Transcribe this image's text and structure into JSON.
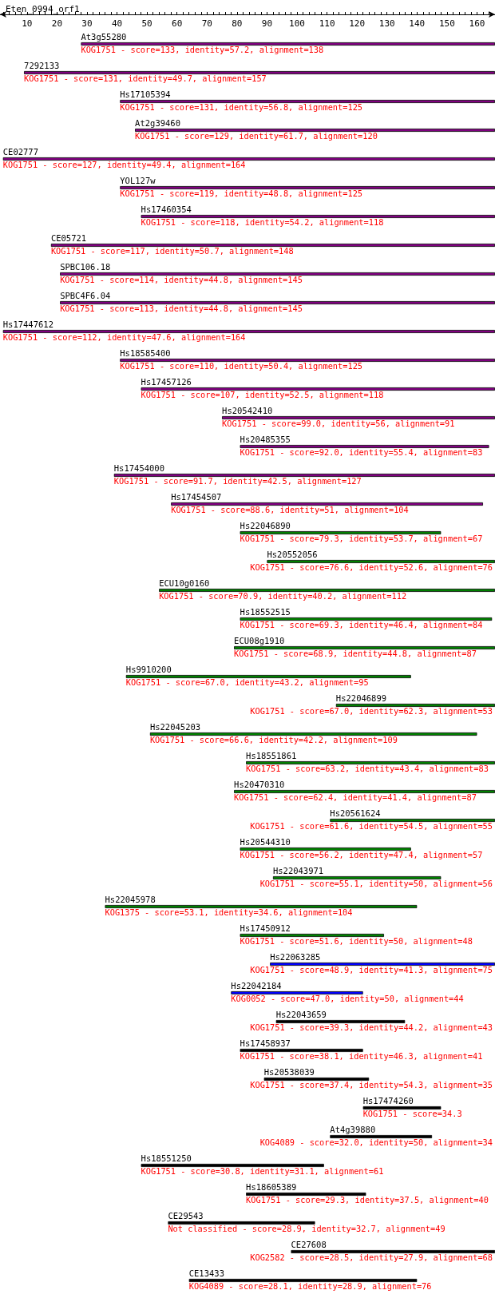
{
  "chart_data": {
    "type": "bar",
    "orientation": "horizontal",
    "title": "Eten_0994_orf1",
    "categories": [
      "At3g55280",
      "7292133",
      "Hs17105394",
      "At2g39460",
      "CE02777",
      "YOL127w",
      "Hs17460354",
      "CE05721",
      "SPBC106.18",
      "SPBC4F6.04",
      "Hs17447612",
      "Hs18585400",
      "Hs17457126",
      "Hs20542410",
      "Hs20485355",
      "Hs17454000",
      "Hs17454507",
      "Hs22046890",
      "Hs20552056",
      "ECU10g0160",
      "Hs18552515",
      "ECU08g1910",
      "Hs9910200",
      "Hs22046899",
      "Hs22045203",
      "Hs18551861",
      "Hs20470310",
      "Hs20561624",
      "Hs20544310",
      "Hs22043971",
      "Hs22045978",
      "Hs17450912",
      "Hs22063285",
      "Hs22042184",
      "Hs22043659",
      "Hs17458937",
      "Hs20538039",
      "Hs17474260",
      "At4g39880",
      "Hs18551250",
      "Hs18605389",
      "CE29543",
      "CE27608",
      "CE13433"
    ],
    "base": [
      28,
      9,
      41,
      46,
      2,
      41,
      48,
      18,
      21,
      21,
      2,
      41,
      48,
      75,
      81,
      39,
      58,
      81,
      90,
      54,
      81,
      79,
      43,
      113,
      51,
      83,
      79,
      111,
      81,
      92,
      36,
      81,
      91,
      78,
      93,
      81,
      89,
      122,
      111,
      48,
      83,
      57,
      98,
      64
    ],
    "values": [
      138,
      157,
      125,
      120,
      164,
      125,
      118,
      148,
      145,
      145,
      164,
      125,
      118,
      91,
      83,
      127,
      104,
      67,
      76,
      112,
      84,
      87,
      95,
      53,
      109,
      83,
      87,
      55,
      57,
      56,
      104,
      48,
      75,
      44,
      43,
      41,
      35,
      26,
      34,
      61,
      40,
      49,
      68,
      76
    ],
    "colors": [
      "#800080",
      "#800080",
      "#800080",
      "#800080",
      "#800080",
      "#800080",
      "#800080",
      "#800080",
      "#800080",
      "#800080",
      "#800080",
      "#800080",
      "#800080",
      "#800080",
      "#800080",
      "#800080",
      "#800080",
      "#008000",
      "#008000",
      "#008000",
      "#008000",
      "#008000",
      "#008000",
      "#008000",
      "#008000",
      "#008000",
      "#008000",
      "#008000",
      "#008000",
      "#008000",
      "#008000",
      "#008000",
      "#0000ff",
      "#0000ff",
      "#000000",
      "#000000",
      "#000000",
      "#000000",
      "#000000",
      "#000000",
      "#000000",
      "#000000",
      "#000000",
      "#000000"
    ],
    "value_labels": [
      "KOG1751 - score=133, identity=57.2, alignment=138",
      "KOG1751 - score=131, identity=49.7, alignment=157",
      "KOG1751 - score=131, identity=56.8, alignment=125",
      "KOG1751 - score=129, identity=61.7, alignment=120",
      "KOG1751 - score=127, identity=49.4, alignment=164",
      "KOG1751 - score=119, identity=48.8, alignment=125",
      "KOG1751 - score=118, identity=54.2, alignment=118",
      "KOG1751 - score=117, identity=50.7, alignment=148",
      "KOG1751 - score=114, identity=44.8, alignment=145",
      "KOG1751 - score=113, identity=44.8, alignment=145",
      "KOG1751 - score=112, identity=47.6, alignment=164",
      "KOG1751 - score=110, identity=50.4, alignment=125",
      "KOG1751 - score=107, identity=52.5, alignment=118",
      "KOG1751 - score=99.0, identity=56, alignment=91",
      "KOG1751 - score=92.0, identity=55.4, alignment=83",
      "KOG1751 - score=91.7, identity=42.5, alignment=127",
      "KOG1751 - score=88.6, identity=51, alignment=104",
      "KOG1751 - score=79.3, identity=53.7, alignment=67",
      "KOG1751 - score=76.6, identity=52.6, alignment=76",
      "KOG1751 - score=70.9, identity=40.2, alignment=112",
      "KOG1751 - score=69.3, identity=46.4, alignment=84",
      "KOG1751 - score=68.9, identity=44.8, alignment=87",
      "KOG1751 - score=67.0, identity=43.2, alignment=95",
      "KOG1751 - score=67.0, identity=62.3, alignment=53",
      "KOG1751 - score=66.6, identity=42.2, alignment=109",
      "KOG1751 - score=63.2, identity=43.4, alignment=83",
      "KOG1751 - score=62.4, identity=41.4, alignment=87",
      "KOG1751 - score=61.6, identity=54.5, alignment=55",
      "KOG1751 - score=56.2, identity=47.4, alignment=57",
      "KOG1751 - score=55.1, identity=50, alignment=56",
      "KOG1375 - score=53.1, identity=34.6, alignment=104",
      "KOG1751 - score=51.6, identity=50, alignment=48",
      "KOG1751 - score=48.9, identity=41.3, alignment=75",
      "KOG0052 - score=47.0, identity=50, alignment=44",
      "KOG1751 - score=39.3, identity=44.2, alignment=43",
      "KOG1751 - score=38.1, identity=46.3, alignment=41",
      "KOG1751 - score=37.4, identity=54.3, alignment=35",
      "KOG1751 - score=34.3",
      "KOG4089 - score=32.0, identity=50, alignment=34",
      "KOG1751 - score=30.8, identity=31.1, alignment=61",
      "KOG1751 - score=29.3, identity=37.5, alignment=40",
      "Not classified - score=28.9, identity=32.7, alignment=49",
      "KOG2582 - score=28.5, identity=27.9, alignment=68",
      "KOG4089 - score=28.1, identity=28.9, alignment=76"
    ],
    "xlim": [
      1,
      166
    ],
    "xticks": [
      {
        "value": 2,
        "label": null
      },
      {
        "value": 4,
        "label": null
      },
      {
        "value": 6,
        "label": null
      },
      {
        "value": 8,
        "label": null
      },
      10,
      {
        "value": 12,
        "label": null
      },
      {
        "value": 14,
        "label": null
      },
      {
        "value": 16,
        "label": null
      },
      {
        "value": 18,
        "label": null
      },
      20,
      {
        "value": 22,
        "label": null
      },
      {
        "value": 24,
        "label": null
      },
      {
        "value": 26,
        "label": null
      },
      {
        "value": 28,
        "label": null
      },
      30,
      {
        "value": 32,
        "label": null
      },
      {
        "value": 34,
        "label": null
      },
      {
        "value": 36,
        "label": null
      },
      {
        "value": 38,
        "label": null
      },
      40,
      {
        "value": 42,
        "label": null
      },
      {
        "value": 44,
        "label": null
      },
      {
        "value": 46,
        "label": null
      },
      {
        "value": 48,
        "label": null
      },
      50,
      {
        "value": 52,
        "label": null
      },
      {
        "value": 54,
        "label": null
      },
      {
        "value": 56,
        "label": null
      },
      {
        "value": 58,
        "label": null
      },
      60,
      {
        "value": 62,
        "label": null
      },
      {
        "value": 64,
        "label": null
      },
      {
        "value": 66,
        "label": null
      },
      {
        "value": 68,
        "label": null
      },
      70,
      {
        "value": 72,
        "label": null
      },
      {
        "value": 74,
        "label": null
      },
      {
        "value": 76,
        "label": null
      },
      {
        "value": 78,
        "label": null
      },
      80,
      {
        "value": 82,
        "label": null
      },
      {
        "value": 84,
        "label": null
      },
      {
        "value": 86,
        "label": null
      },
      {
        "value": 88,
        "label": null
      },
      90,
      {
        "value": 92,
        "label": null
      },
      {
        "value": 94,
        "label": null
      },
      {
        "value": 96,
        "label": null
      },
      {
        "value": 98,
        "label": null
      },
      100,
      {
        "value": 102,
        "label": null
      },
      {
        "value": 104,
        "label": null
      },
      {
        "value": 106,
        "label": null
      },
      {
        "value": 108,
        "label": null
      },
      110,
      {
        "value": 112,
        "label": null
      },
      {
        "value": 114,
        "label": null
      },
      {
        "value": 116,
        "label": null
      },
      {
        "value": 118,
        "label": null
      },
      120,
      {
        "value": 122,
        "label": null
      },
      {
        "value": 124,
        "label": null
      },
      {
        "value": 126,
        "label": null
      },
      {
        "value": 128,
        "label": null
      },
      130,
      {
        "value": 132,
        "label": null
      },
      {
        "value": 134,
        "label": null
      },
      {
        "value": 136,
        "label": null
      },
      {
        "value": 138,
        "label": null
      },
      140,
      {
        "value": 142,
        "label": null
      },
      {
        "value": 144,
        "label": null
      },
      {
        "value": 146,
        "label": null
      },
      {
        "value": 148,
        "label": null
      },
      150,
      {
        "value": 152,
        "label": null
      },
      {
        "value": 154,
        "label": null
      },
      {
        "value": 156,
        "label": null
      },
      {
        "value": 158,
        "label": null
      },
      160,
      {
        "value": 162,
        "label": null
      },
      {
        "value": 164,
        "label": null
      }
    ]
  }
}
